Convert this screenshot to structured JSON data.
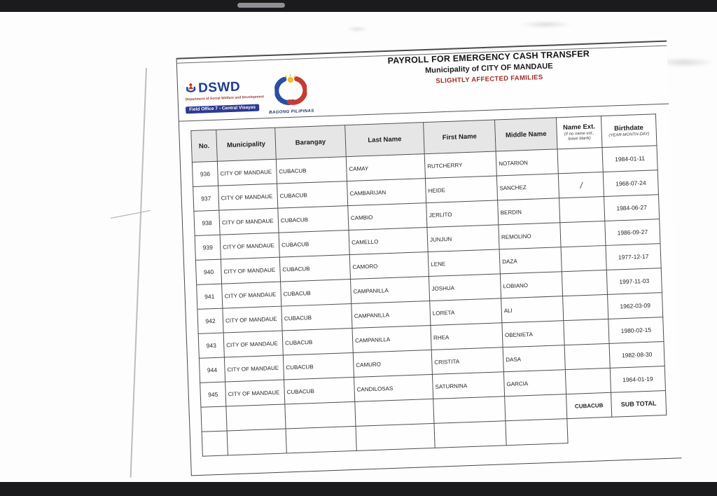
{
  "colors": {
    "bar_bg": "#1b1b1d",
    "handle": "#8f8f94",
    "brand_blue": "#1c3e94",
    "brand_red": "#a03a30",
    "banner_bg": "#2b3990",
    "title_red": "#9e2b25",
    "header_cell_bg": "#e6e6e6"
  },
  "icons": {
    "top_handle": "drag-handle-pill",
    "dswd_emblem": "dswd-emblem-icon",
    "bagong_logo": "bagong-pilipinas-sun-swirl-icon"
  },
  "document": {
    "logos": {
      "dswd": {
        "acronym": "DSWD",
        "subtitle": "Department of Social Welfare and Development",
        "banner": "Field Office 7 - Central Visayas"
      },
      "bagong": {
        "label": "BAGONG PILIPINAS"
      }
    },
    "title": "PAYROLL FOR EMERGENCY CASH TRANSFER",
    "subtitle": "Municipality of CITY OF MANDAUE",
    "category": "SLIGHTLY AFFECTED FAMILIES",
    "table": {
      "headers": [
        {
          "label": "No."
        },
        {
          "label": "Municipality"
        },
        {
          "label": "Barangay"
        },
        {
          "label": "Last Name"
        },
        {
          "label": "First Name"
        },
        {
          "label": "Middle Name"
        },
        {
          "label": "Name Ext.",
          "note": "(If no name ext., leave blank)"
        },
        {
          "label": "Birthdate",
          "note": "(YEAR-MONTH-DAY)"
        }
      ],
      "rows": [
        {
          "no": "936",
          "municipality": "CITY OF MANDAUE",
          "barangay": "CUBACUB",
          "last_name": "CAMAY",
          "first_name": "RUTCHERRY",
          "middle_name": "NOTARION",
          "name_ext": "",
          "birthdate": "1984-01-11"
        },
        {
          "no": "937",
          "municipality": "CITY OF MANDAUE",
          "barangay": "CUBACUB",
          "last_name": "CAMBARIJAN",
          "first_name": "HEIDE",
          "middle_name": "SANCHEZ",
          "name_ext": "/",
          "birthdate": "1968-07-24"
        },
        {
          "no": "938",
          "municipality": "CITY OF MANDAUE",
          "barangay": "CUBACUB",
          "last_name": "CAMBIO",
          "first_name": "JERLITO",
          "middle_name": "BERDIN",
          "name_ext": "",
          "birthdate": "1984-06-27"
        },
        {
          "no": "939",
          "municipality": "CITY OF MANDAUE",
          "barangay": "CUBACUB",
          "last_name": "CAMELLO",
          "first_name": "JUNJUN",
          "middle_name": "REMOLINO",
          "name_ext": "",
          "birthdate": "1986-09-27"
        },
        {
          "no": "940",
          "municipality": "CITY OF MANDAUE",
          "barangay": "CUBACUB",
          "last_name": "CAMORO",
          "first_name": "LENE",
          "middle_name": "DAZA",
          "name_ext": "",
          "birthdate": "1977-12-17"
        },
        {
          "no": "941",
          "municipality": "CITY OF MANDAUE",
          "barangay": "CUBACUB",
          "last_name": "CAMPANILLA",
          "first_name": "JOSHUA",
          "middle_name": "LOBIANO",
          "name_ext": "",
          "birthdate": "1997-11-03"
        },
        {
          "no": "942",
          "municipality": "CITY OF MANDAUE",
          "barangay": "CUBACUB",
          "last_name": "CAMPANILLA",
          "first_name": "LORETA",
          "middle_name": "ALI",
          "name_ext": "",
          "birthdate": "1962-03-09"
        },
        {
          "no": "943",
          "municipality": "CITY OF MANDAUE",
          "barangay": "CUBACUB",
          "last_name": "CAMPANILLA",
          "first_name": "RHEA",
          "middle_name": "OBENIETA",
          "name_ext": "",
          "birthdate": "1980-02-15"
        },
        {
          "no": "944",
          "municipality": "CITY OF MANDAUE",
          "barangay": "CUBACUB",
          "last_name": "CAMURO",
          "first_name": "CRISTITA",
          "middle_name": "DASA",
          "name_ext": "",
          "birthdate": "1982-08-30"
        },
        {
          "no": "945",
          "municipality": "CITY OF MANDAUE",
          "barangay": "CUBACUB",
          "last_name": "CANDILOSAS",
          "first_name": "SATURNINA",
          "middle_name": "GARCIA",
          "name_ext": "",
          "birthdate": "1964-01-19"
        }
      ],
      "subtotal": {
        "barangay_label": "CUBACUB",
        "label": "SUB TOTAL"
      }
    }
  }
}
